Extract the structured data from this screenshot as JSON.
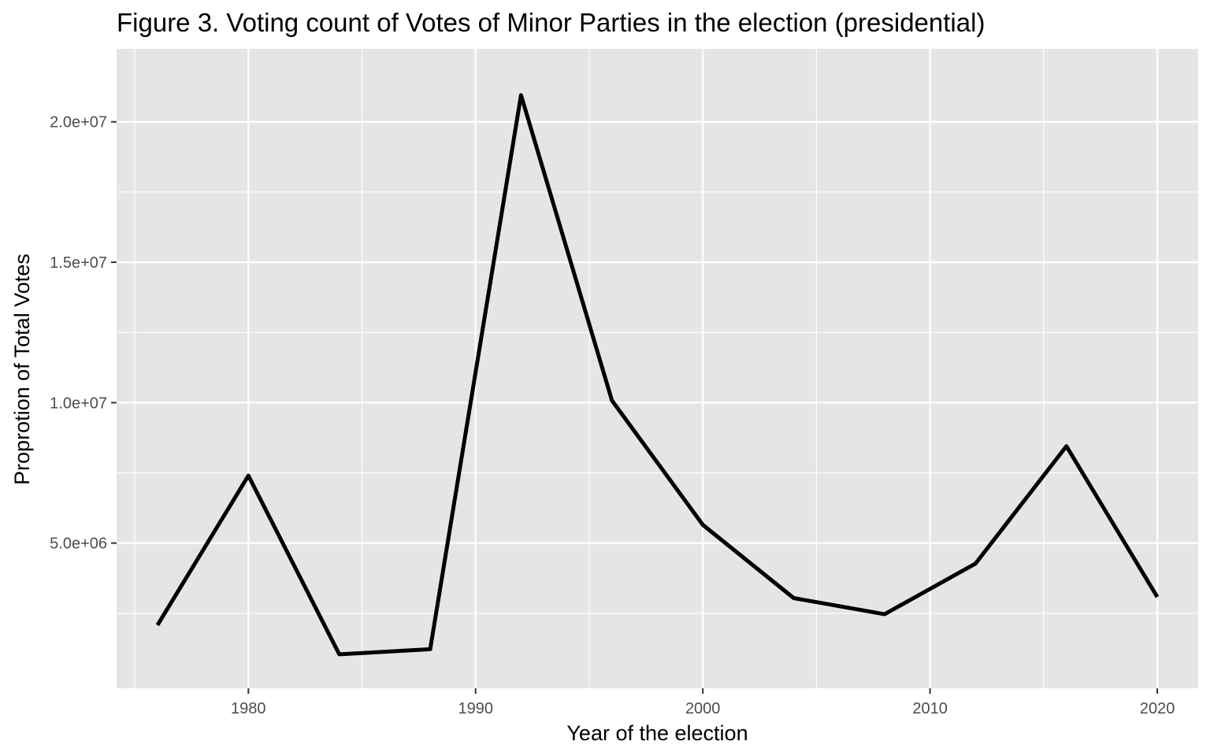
{
  "chart_data": {
    "type": "line",
    "title": "Figure 3. Voting count of Votes of Minor Parties in the election (presidential)",
    "xlabel": "Year of the election",
    "ylabel": "Proprotion of Total Votes",
    "xlim": [
      1974.2,
      2021.8
    ],
    "ylim": [
      -170000.0,
      22600000.0
    ],
    "x_ticks": [
      1980,
      1990,
      2000,
      2010,
      2020
    ],
    "x_tick_labels": [
      "1980",
      "1990",
      "2000",
      "2010",
      "2020"
    ],
    "x_minor_ticks": [
      1975,
      1985,
      1995,
      2005,
      2015
    ],
    "y_ticks": [
      5000000,
      10000000,
      15000000,
      20000000
    ],
    "y_tick_labels": [
      "5.0e+06",
      "1.0e+07",
      "1.5e+07",
      "2.0e+07"
    ],
    "y_minor_ticks": [
      2500000,
      7500000,
      12500000,
      17500000
    ],
    "grid": true,
    "legend": "none",
    "colors": {
      "panel_background": "#e5e5e5",
      "grid": "#ffffff",
      "line": "#000000",
      "tick_text": "#4d4d4d",
      "tick_mark": "#333333"
    },
    "series": [
      {
        "x": [
          1976,
          1980,
          1984,
          1988,
          1992,
          1996,
          2000,
          2004,
          2008,
          2012,
          2016,
          2020
        ],
        "y": [
          2080000,
          7400000,
          1040000,
          1220000,
          20950000,
          10080000,
          5650000,
          3040000,
          2470000,
          4270000,
          8450000,
          3080000
        ]
      }
    ]
  }
}
